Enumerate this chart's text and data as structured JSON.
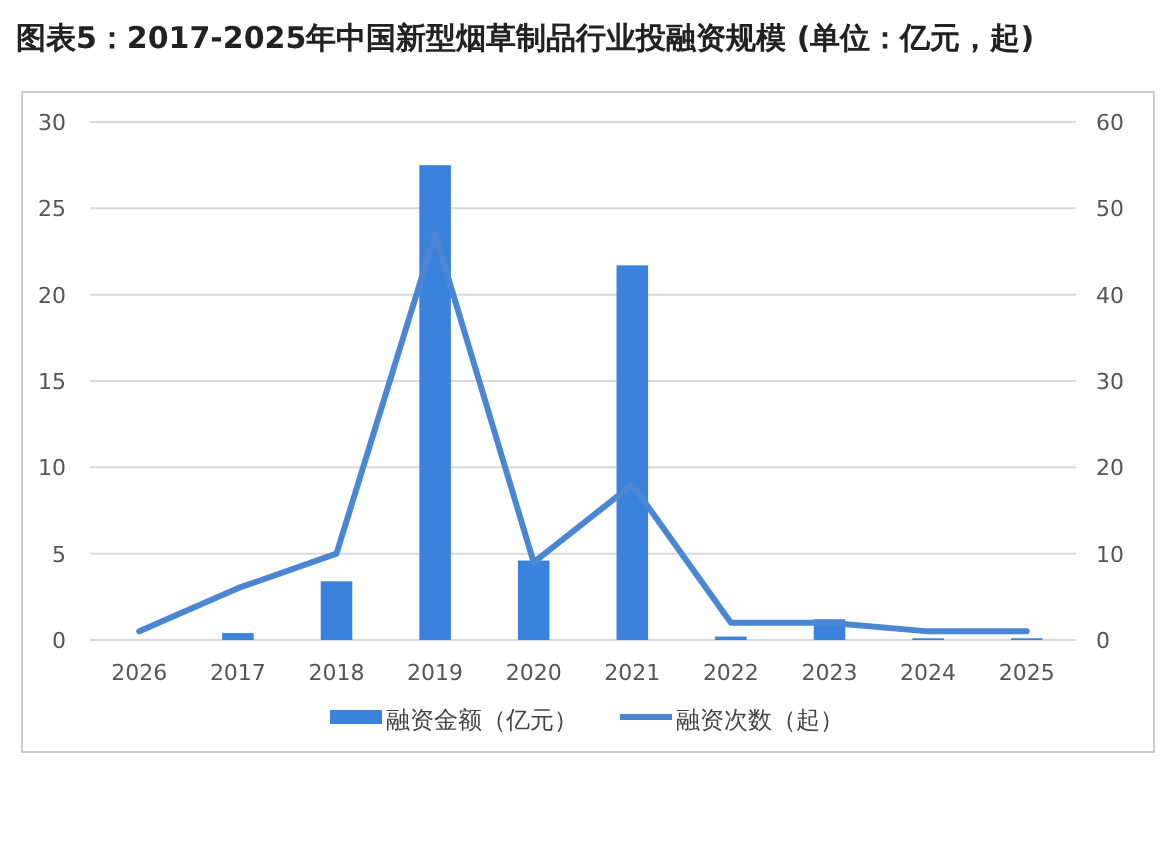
{
  "chart_data": {
    "type": "bar",
    "title": "图表5：2017-2025年中国新型烟草制品行业投融资规模 (单位：亿元，起)",
    "categories": [
      "2026",
      "2017",
      "2018",
      "2019",
      "2020",
      "2021",
      "2022",
      "2023",
      "2024",
      "2025"
    ],
    "series": [
      {
        "name": "融资金额（亿元）",
        "color": "#3b82dc",
        "values": [
          0,
          0.4,
          3.4,
          27.5,
          4.6,
          21.7,
          0.2,
          1.2,
          0.1,
          0.1
        ]
      },
      {
        "name": "融资次数（起）",
        "type": "line",
        "axis": "y2",
        "color": "#4a86d4",
        "values": [
          1,
          6,
          10,
          47,
          9,
          18,
          2,
          2,
          1,
          1
        ]
      }
    ],
    "ylim": [
      0,
      30
    ],
    "yticks": [
      0,
      5,
      10,
      15,
      20,
      25,
      30
    ],
    "y2lim": [
      0,
      60
    ],
    "y2ticks": [
      0,
      10,
      20,
      30,
      40,
      50,
      60
    ],
    "grid": "y",
    "legend": "bottom",
    "marker": "none",
    "line_style": "solid"
  }
}
